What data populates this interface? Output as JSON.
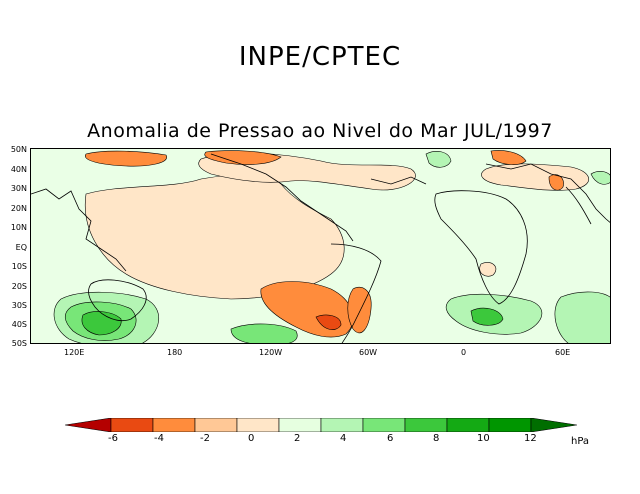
{
  "header": {
    "agency": "INPE/CPTEC"
  },
  "map": {
    "title": "Anomalia de Pressao ao Nivel do Mar JUL/1997",
    "latitude_labels": [
      "50N",
      "40N",
      "30N",
      "20N",
      "10N",
      "EQ",
      "10S",
      "20S",
      "30S",
      "40S",
      "50S"
    ],
    "longitude_labels": [
      "120E",
      "180",
      "120W",
      "60W",
      "0",
      "60E"
    ]
  },
  "legend": {
    "unit": "hPa",
    "tick_labels": [
      "-6",
      "-4",
      "-2",
      "0",
      "2",
      "4",
      "6",
      "8",
      "10",
      "12"
    ],
    "colors": [
      "#b40000",
      "#e94a12",
      "#ff8c3c",
      "#ffc896",
      "#ffe6c8",
      "#e6ffe0",
      "#b4f5b4",
      "#78e678",
      "#3cc83c",
      "#14aa14",
      "#009600",
      "#006e00"
    ]
  }
}
